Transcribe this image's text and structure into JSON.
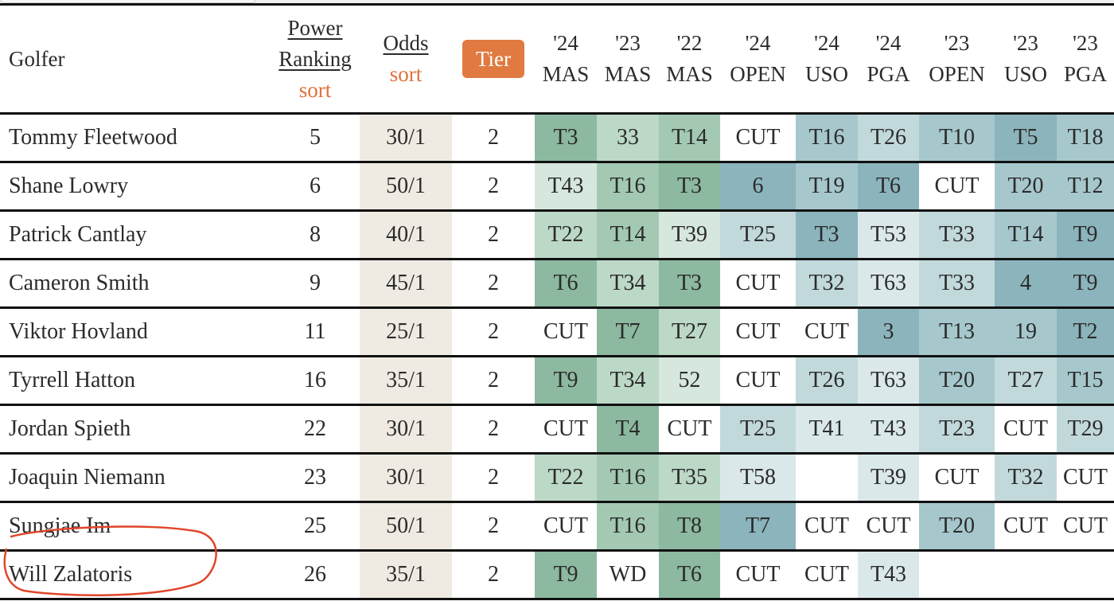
{
  "header": {
    "golfer": "Golfer",
    "power_ranking": [
      "Power",
      "Ranking"
    ],
    "odds": "Odds",
    "sort_label": "sort",
    "tier": "Tier",
    "events": [
      {
        "year": "'24",
        "name": "MAS",
        "type": "major-masters"
      },
      {
        "year": "'23",
        "name": "MAS",
        "type": "major-masters"
      },
      {
        "year": "'22",
        "name": "MAS",
        "type": "major-masters"
      },
      {
        "year": "'24",
        "name": "OPEN",
        "type": "other"
      },
      {
        "year": "'24",
        "name": "USO",
        "type": "other"
      },
      {
        "year": "'24",
        "name": "PGA",
        "type": "other"
      },
      {
        "year": "'23",
        "name": "OPEN",
        "type": "other"
      },
      {
        "year": "'23",
        "name": "USO",
        "type": "other"
      },
      {
        "year": "'23",
        "name": "PGA",
        "type": "other"
      }
    ]
  },
  "colors": {
    "accent": "#e07a40",
    "odds_bg": "#efebe3",
    "masters_scale": [
      "#8cb9a0",
      "#a3c9b3",
      "#bcd8c7",
      "#d6e8dd"
    ],
    "other_scale": [
      "#8bb4bc",
      "#a6c8cd",
      "#c2d9dc",
      "#dae8ea"
    ],
    "annotation": "#e0452a"
  },
  "rows": [
    {
      "golfer": "Tommy Fleetwood",
      "power": "5",
      "odds": "30/1",
      "tier": "2",
      "results": [
        "T3",
        "33",
        "T14",
        "CUT",
        "T16",
        "T26",
        "T10",
        "T5",
        "T18"
      ]
    },
    {
      "golfer": "Shane Lowry",
      "power": "6",
      "odds": "50/1",
      "tier": "2",
      "results": [
        "T43",
        "T16",
        "T3",
        "6",
        "T19",
        "T6",
        "CUT",
        "T20",
        "T12"
      ]
    },
    {
      "golfer": "Patrick Cantlay",
      "power": "8",
      "odds": "40/1",
      "tier": "2",
      "results": [
        "T22",
        "T14",
        "T39",
        "T25",
        "T3",
        "T53",
        "T33",
        "T14",
        "T9"
      ]
    },
    {
      "golfer": "Cameron Smith",
      "power": "9",
      "odds": "45/1",
      "tier": "2",
      "results": [
        "T6",
        "T34",
        "T3",
        "CUT",
        "T32",
        "T63",
        "T33",
        "4",
        "T9"
      ]
    },
    {
      "golfer": "Viktor Hovland",
      "power": "11",
      "odds": "25/1",
      "tier": "2",
      "results": [
        "CUT",
        "T7",
        "T27",
        "CUT",
        "CUT",
        "3",
        "T13",
        "19",
        "T2"
      ]
    },
    {
      "golfer": "Tyrrell Hatton",
      "power": "16",
      "odds": "35/1",
      "tier": "2",
      "results": [
        "T9",
        "T34",
        "52",
        "CUT",
        "T26",
        "T63",
        "T20",
        "T27",
        "T15"
      ]
    },
    {
      "golfer": "Jordan Spieth",
      "power": "22",
      "odds": "30/1",
      "tier": "2",
      "results": [
        "CUT",
        "T4",
        "CUT",
        "T25",
        "T41",
        "T43",
        "T23",
        "CUT",
        "T29"
      ]
    },
    {
      "golfer": "Joaquin Niemann",
      "power": "23",
      "odds": "30/1",
      "tier": "2",
      "results": [
        "T22",
        "T16",
        "T35",
        "T58",
        "",
        "T39",
        "CUT",
        "T32",
        "CUT"
      ]
    },
    {
      "golfer": "Sungjae Im",
      "power": "25",
      "odds": "50/1",
      "tier": "2",
      "results": [
        "CUT",
        "T16",
        "T8",
        "T7",
        "CUT",
        "CUT",
        "T20",
        "CUT",
        "CUT"
      ]
    },
    {
      "golfer": "Will Zalatoris",
      "power": "26",
      "odds": "35/1",
      "tier": "2",
      "results": [
        "T9",
        "WD",
        "T6",
        "CUT",
        "CUT",
        "T43",
        "",
        "",
        ""
      ]
    }
  ]
}
